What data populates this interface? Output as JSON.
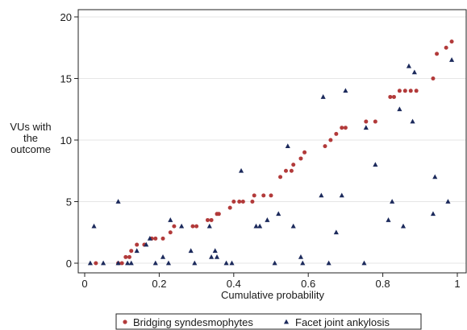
{
  "chart_data": {
    "type": "scatter",
    "title": "",
    "xlabel": "Cumulative probability",
    "ylabel_lines": [
      "VUs with",
      "the",
      "outcome"
    ],
    "xlim": [
      0,
      1
    ],
    "ylim": [
      0,
      20
    ],
    "xticks": [
      0,
      0.2,
      0.4,
      0.6,
      0.8,
      1
    ],
    "xtick_labels": [
      "0",
      "0.2",
      "0.4",
      "0.6",
      "0.8",
      "1"
    ],
    "yticks": [
      0,
      5,
      10,
      15,
      20
    ],
    "ytick_labels": [
      "0",
      "5",
      "10",
      "15",
      "20"
    ],
    "grid": "horizontal",
    "legend_position": "bottom",
    "series": [
      {
        "name": "Bridging syndesmophytes",
        "marker": "circle",
        "color": "#b23a3a",
        "points": [
          [
            0.03,
            0
          ],
          [
            0.09,
            0
          ],
          [
            0.1,
            0
          ],
          [
            0.11,
            0.5
          ],
          [
            0.12,
            0.5
          ],
          [
            0.125,
            1
          ],
          [
            0.14,
            1.5
          ],
          [
            0.16,
            1.5
          ],
          [
            0.18,
            2
          ],
          [
            0.19,
            2
          ],
          [
            0.21,
            2
          ],
          [
            0.23,
            2.5
          ],
          [
            0.24,
            3
          ],
          [
            0.29,
            3
          ],
          [
            0.3,
            3
          ],
          [
            0.33,
            3.5
          ],
          [
            0.34,
            3.5
          ],
          [
            0.355,
            4
          ],
          [
            0.36,
            4
          ],
          [
            0.39,
            4.5
          ],
          [
            0.4,
            5
          ],
          [
            0.415,
            5
          ],
          [
            0.425,
            5
          ],
          [
            0.45,
            5
          ],
          [
            0.455,
            5.5
          ],
          [
            0.48,
            5.5
          ],
          [
            0.5,
            5.5
          ],
          [
            0.525,
            7
          ],
          [
            0.54,
            7.5
          ],
          [
            0.555,
            7.5
          ],
          [
            0.56,
            8
          ],
          [
            0.58,
            8.5
          ],
          [
            0.59,
            9
          ],
          [
            0.645,
            9.5
          ],
          [
            0.66,
            10
          ],
          [
            0.675,
            10.5
          ],
          [
            0.69,
            11
          ],
          [
            0.7,
            11
          ],
          [
            0.755,
            11.5
          ],
          [
            0.78,
            11.5
          ],
          [
            0.82,
            13.5
          ],
          [
            0.83,
            13.5
          ],
          [
            0.845,
            14
          ],
          [
            0.86,
            14
          ],
          [
            0.875,
            14
          ],
          [
            0.89,
            14
          ],
          [
            0.935,
            15
          ],
          [
            0.945,
            17
          ],
          [
            0.97,
            17.5
          ],
          [
            0.985,
            18
          ]
        ]
      },
      {
        "name": "Facet joint ankylosis",
        "marker": "triangle",
        "color": "#1c2a5c",
        "points": [
          [
            0.015,
            0
          ],
          [
            0.05,
            0
          ],
          [
            0.025,
            3
          ],
          [
            0.09,
            0
          ],
          [
            0.09,
            5
          ],
          [
            0.115,
            0
          ],
          [
            0.125,
            0
          ],
          [
            0.14,
            1
          ],
          [
            0.165,
            1.5
          ],
          [
            0.175,
            2
          ],
          [
            0.19,
            0
          ],
          [
            0.21,
            0.5
          ],
          [
            0.225,
            0
          ],
          [
            0.23,
            3.5
          ],
          [
            0.26,
            3
          ],
          [
            0.285,
            1
          ],
          [
            0.295,
            0
          ],
          [
            0.335,
            3
          ],
          [
            0.34,
            0.5
          ],
          [
            0.35,
            1
          ],
          [
            0.355,
            0.5
          ],
          [
            0.38,
            0
          ],
          [
            0.395,
            0
          ],
          [
            0.42,
            7.5
          ],
          [
            0.46,
            3
          ],
          [
            0.47,
            3
          ],
          [
            0.49,
            3.5
          ],
          [
            0.51,
            0
          ],
          [
            0.52,
            4
          ],
          [
            0.545,
            9.5
          ],
          [
            0.56,
            3
          ],
          [
            0.58,
            0.5
          ],
          [
            0.585,
            0
          ],
          [
            0.635,
            5.5
          ],
          [
            0.64,
            13.5
          ],
          [
            0.655,
            0
          ],
          [
            0.675,
            2.5
          ],
          [
            0.69,
            5.5
          ],
          [
            0.7,
            14
          ],
          [
            0.75,
            0
          ],
          [
            0.755,
            11
          ],
          [
            0.78,
            8
          ],
          [
            0.815,
            3.5
          ],
          [
            0.825,
            5
          ],
          [
            0.845,
            12.5
          ],
          [
            0.855,
            3
          ],
          [
            0.87,
            16
          ],
          [
            0.88,
            11.5
          ],
          [
            0.885,
            15.5
          ],
          [
            0.935,
            4
          ],
          [
            0.94,
            7
          ],
          [
            0.975,
            5
          ],
          [
            0.985,
            16.5
          ]
        ]
      }
    ]
  }
}
